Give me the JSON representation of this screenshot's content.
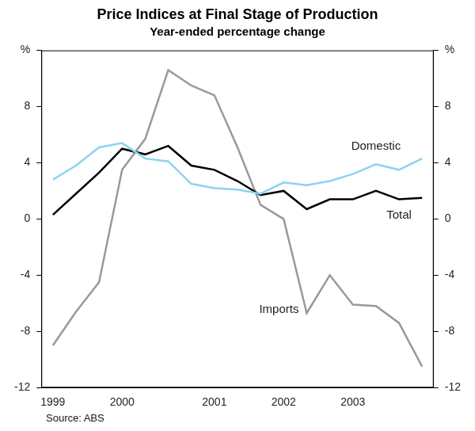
{
  "chart_data": {
    "type": "line",
    "title": "Price Indices at Final Stage of Production",
    "subtitle": "Year-ended percentage change",
    "source": "Source: ABS",
    "categories": [
      "1999",
      null,
      null,
      "2000",
      null,
      null,
      null,
      "2001",
      null,
      null,
      "2002",
      null,
      null,
      "2003",
      null,
      null,
      null
    ],
    "series": [
      {
        "name": "Domestic",
        "color": "#8dd3f0",
        "values": [
          2.8,
          3.8,
          5.1,
          5.4,
          4.3,
          4.1,
          2.5,
          2.2,
          2.1,
          1.8,
          2.6,
          2.4,
          2.7,
          3.2,
          3.9,
          3.5,
          4.3
        ]
      },
      {
        "name": "Total",
        "color": "#000000",
        "values": [
          0.3,
          1.8,
          3.3,
          5.0,
          4.6,
          5.2,
          3.8,
          3.5,
          2.7,
          1.7,
          2.0,
          0.7,
          1.4,
          1.4,
          2.0,
          1.4,
          1.5
        ]
      },
      {
        "name": "Imports",
        "color": "#999999",
        "values": [
          -9.0,
          -6.6,
          -4.5,
          3.5,
          5.7,
          10.6,
          9.5,
          8.8,
          5.1,
          1.0,
          0.0,
          -6.7,
          -4.0,
          -6.1,
          -6.2,
          -7.4,
          -10.5
        ]
      }
    ],
    "ylim": [
      -12,
      12
    ],
    "yticks": [
      -12,
      -8,
      -4,
      0,
      4,
      8,
      {
        "value": 12,
        "label": "%"
      }
    ],
    "y2lim": [
      -12,
      12
    ],
    "y2ticks": [
      -12,
      -8,
      -4,
      0,
      4,
      8,
      {
        "value": 12,
        "label": "%"
      }
    ],
    "grid": false,
    "legend": "none"
  }
}
